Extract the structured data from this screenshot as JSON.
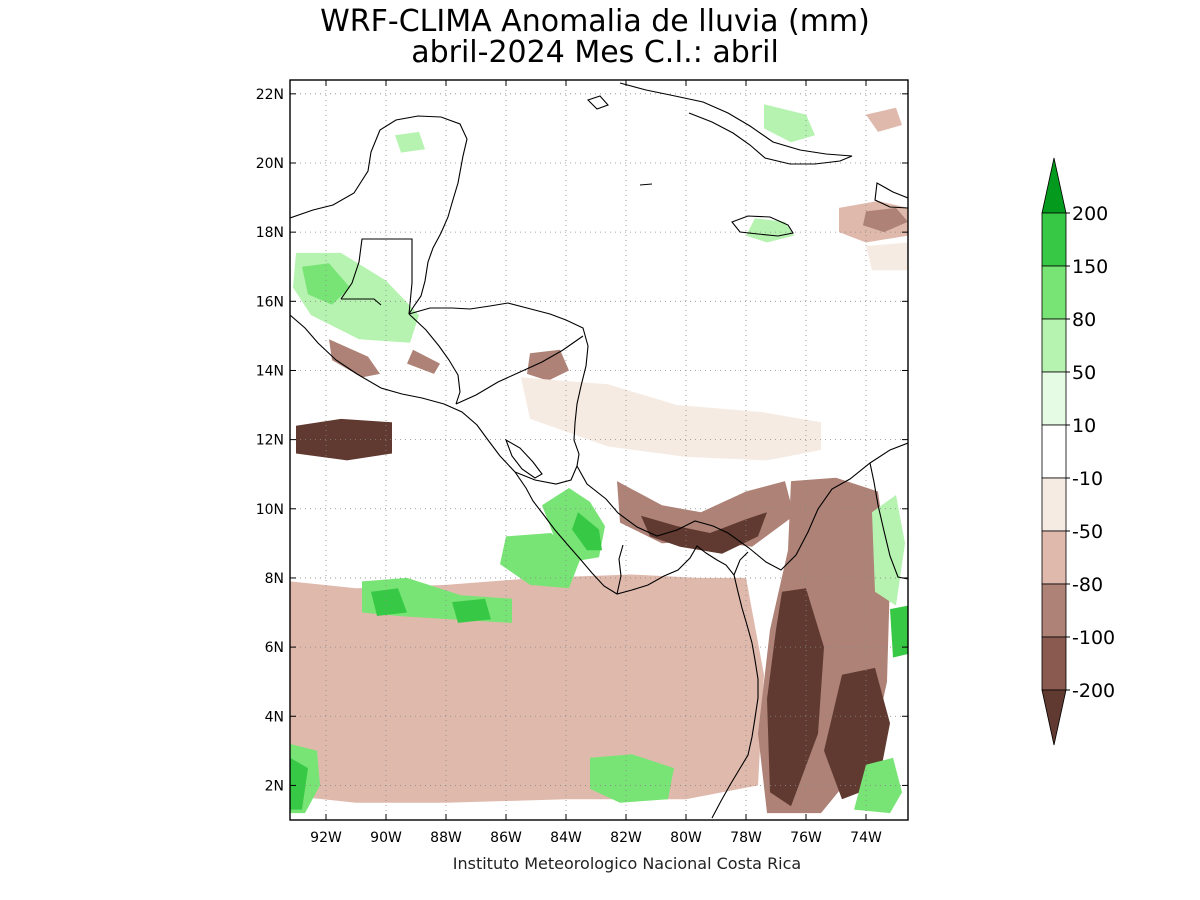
{
  "title_line1": "WRF-CLIMA Anomalia de lluvia (mm)",
  "title_line2": "abril-2024 Mes C.I.: abril",
  "credit": "Instituto Meteorologico Nacional Costa Rica",
  "map": {
    "lon_range": [
      -93.2,
      -72.6
    ],
    "lat_range": [
      1.0,
      22.4
    ],
    "lon_ticks": [
      {
        "value": -92,
        "label": "92W"
      },
      {
        "value": -90,
        "label": "90W"
      },
      {
        "value": -88,
        "label": "88W"
      },
      {
        "value": -86,
        "label": "86W"
      },
      {
        "value": -84,
        "label": "84W"
      },
      {
        "value": -82,
        "label": "82W"
      },
      {
        "value": -80,
        "label": "80W"
      },
      {
        "value": -78,
        "label": "78W"
      },
      {
        "value": -76,
        "label": "76W"
      },
      {
        "value": -74,
        "label": "74W"
      }
    ],
    "lat_ticks": [
      {
        "value": 22,
        "label": "22N"
      },
      {
        "value": 20,
        "label": "20N"
      },
      {
        "value": 18,
        "label": "18N"
      },
      {
        "value": 16,
        "label": "16N"
      },
      {
        "value": 14,
        "label": "14N"
      },
      {
        "value": 12,
        "label": "12N"
      },
      {
        "value": 10,
        "label": "10N"
      },
      {
        "value": 8,
        "label": "8N"
      },
      {
        "value": 6,
        "label": "6N"
      },
      {
        "value": 4,
        "label": "4N"
      },
      {
        "value": 2,
        "label": "2N"
      }
    ],
    "grid": true,
    "anomaly_regions": [
      {
        "level": -200,
        "points": [
          [
            -93.2,
            6.7
          ],
          [
            -91,
            6.8
          ],
          [
            -89,
            6.4
          ],
          [
            -86,
            6.7
          ],
          [
            -83.5,
            6.9
          ],
          [
            -81,
            7.1
          ],
          [
            -79,
            7.1
          ],
          [
            -78.6,
            5.5
          ],
          [
            -78.6,
            3.4
          ],
          [
            -79.5,
            2.7
          ],
          [
            -82,
            2.8
          ],
          [
            -85,
            3.1
          ],
          [
            -88,
            3.1
          ],
          [
            -91,
            3.2
          ],
          [
            -93.2,
            3.4
          ]
        ]
      },
      {
        "level": -100,
        "points": [
          [
            -93.2,
            7.6
          ],
          [
            -91.5,
            7.4
          ],
          [
            -89,
            7.0
          ],
          [
            -86,
            7.4
          ],
          [
            -83,
            7.7
          ],
          [
            -80.5,
            7.7
          ],
          [
            -78.4,
            7.6
          ],
          [
            -78.0,
            5.0
          ],
          [
            -78.2,
            2.6
          ],
          [
            -80,
            2.2
          ],
          [
            -83,
            2.4
          ],
          [
            -86,
            2.6
          ],
          [
            -89,
            2.4
          ],
          [
            -91.5,
            2.3
          ],
          [
            -93.2,
            2.6
          ]
        ]
      },
      {
        "level": -80,
        "points": [
          [
            -93.2,
            7.9
          ],
          [
            -91,
            7.7
          ],
          [
            -88,
            7.8
          ],
          [
            -85,
            8.0
          ],
          [
            -81.8,
            8.1
          ],
          [
            -79.6,
            8.0
          ],
          [
            -78.0,
            8.0
          ],
          [
            -77.4,
            5.2
          ],
          [
            -77.6,
            2.0
          ],
          [
            -80,
            1.6
          ],
          [
            -84,
            1.6
          ],
          [
            -88,
            1.5
          ],
          [
            -91,
            1.5
          ],
          [
            -93.2,
            1.7
          ]
        ]
      },
      {
        "level": -200,
        "points": [
          [
            -93.0,
            12.4
          ],
          [
            -91.5,
            12.6
          ],
          [
            -89.8,
            12.5
          ],
          [
            -89.8,
            11.6
          ],
          [
            -91.3,
            11.4
          ],
          [
            -93.0,
            11.6
          ]
        ]
      },
      {
        "level": -100,
        "points": [
          [
            -82.3,
            10.8
          ],
          [
            -80.8,
            10.1
          ],
          [
            -79.5,
            9.9
          ],
          [
            -78.0,
            10.5
          ],
          [
            -76.7,
            10.8
          ],
          [
            -76.4,
            9.8
          ],
          [
            -77.8,
            8.9
          ],
          [
            -79.5,
            9.1
          ],
          [
            -80.8,
            9.0
          ],
          [
            -82.2,
            9.6
          ]
        ]
      },
      {
        "level": -200,
        "points": [
          [
            -81.5,
            9.8
          ],
          [
            -80.3,
            9.5
          ],
          [
            -79.2,
            9.3
          ],
          [
            -78.0,
            9.7
          ],
          [
            -77.3,
            9.9
          ],
          [
            -77.6,
            9.2
          ],
          [
            -78.8,
            8.7
          ],
          [
            -80.2,
            8.9
          ],
          [
            -81.2,
            9.2
          ]
        ]
      },
      {
        "level": -100,
        "points": [
          [
            -76.5,
            10.8
          ],
          [
            -75.0,
            10.9
          ],
          [
            -73.6,
            10.5
          ],
          [
            -73.2,
            8.0
          ],
          [
            -73.3,
            5.0
          ],
          [
            -73.8,
            3.0
          ],
          [
            -75.5,
            1.2
          ],
          [
            -77.3,
            1.2
          ],
          [
            -77.6,
            3.5
          ],
          [
            -77.2,
            6.5
          ],
          [
            -76.6,
            8.8
          ]
        ]
      },
      {
        "level": -200,
        "points": [
          [
            -76.8,
            7.6
          ],
          [
            -76.0,
            7.7
          ],
          [
            -75.4,
            6.0
          ],
          [
            -75.6,
            3.5
          ],
          [
            -76.5,
            1.4
          ],
          [
            -77.2,
            1.8
          ],
          [
            -77.3,
            4.5
          ],
          [
            -77.0,
            6.5
          ]
        ]
      },
      {
        "level": -200,
        "points": [
          [
            -74.8,
            5.2
          ],
          [
            -73.7,
            5.4
          ],
          [
            -73.2,
            3.8
          ],
          [
            -73.6,
            2.0
          ],
          [
            -74.8,
            1.6
          ],
          [
            -75.4,
            3.0
          ]
        ]
      },
      {
        "level": -100,
        "points": [
          [
            -85.2,
            14.5
          ],
          [
            -84.2,
            14.6
          ],
          [
            -83.9,
            14.0
          ],
          [
            -84.6,
            13.7
          ],
          [
            -85.3,
            13.9
          ]
        ]
      },
      {
        "level": -100,
        "points": [
          [
            -91.9,
            14.9
          ],
          [
            -90.6,
            14.4
          ],
          [
            -90.2,
            13.9
          ],
          [
            -90.8,
            13.8
          ],
          [
            -91.8,
            14.3
          ]
        ]
      },
      {
        "level": -100,
        "points": [
          [
            -89.1,
            14.6
          ],
          [
            -88.2,
            14.2
          ],
          [
            -88.4,
            13.9
          ],
          [
            -89.3,
            14.2
          ]
        ]
      },
      {
        "level": -50,
        "points": [
          [
            -85.5,
            13.8
          ],
          [
            -82.6,
            13.6
          ],
          [
            -80.3,
            13.0
          ],
          [
            -77.5,
            12.8
          ],
          [
            -75.5,
            12.5
          ],
          [
            -75.5,
            11.7
          ],
          [
            -77.3,
            11.4
          ],
          [
            -80.0,
            11.5
          ],
          [
            -82.6,
            11.8
          ],
          [
            -85.2,
            12.6
          ]
        ]
      },
      {
        "level": 80,
        "points": [
          [
            -83.9,
            10.6
          ],
          [
            -83.2,
            10.2
          ],
          [
            -82.7,
            9.5
          ],
          [
            -82.9,
            8.6
          ],
          [
            -83.6,
            8.5
          ],
          [
            -84.4,
            9.2
          ],
          [
            -84.8,
            10.1
          ]
        ]
      },
      {
        "level": 150,
        "points": [
          [
            -83.6,
            9.9
          ],
          [
            -82.9,
            9.4
          ],
          [
            -82.8,
            8.8
          ],
          [
            -83.3,
            8.8
          ],
          [
            -83.8,
            9.4
          ]
        ]
      },
      {
        "level": 80,
        "points": [
          [
            -86.0,
            9.2
          ],
          [
            -84.5,
            9.3
          ],
          [
            -83.5,
            8.6
          ],
          [
            -83.9,
            7.7
          ],
          [
            -85.2,
            7.8
          ],
          [
            -86.2,
            8.4
          ]
        ]
      },
      {
        "level": 80,
        "points": [
          [
            -90.8,
            7.9
          ],
          [
            -89.3,
            8.0
          ],
          [
            -87.5,
            7.5
          ],
          [
            -85.8,
            7.4
          ],
          [
            -85.8,
            6.7
          ],
          [
            -87.8,
            6.8
          ],
          [
            -89.6,
            6.9
          ],
          [
            -90.8,
            7.0
          ]
        ]
      },
      {
        "level": 150,
        "points": [
          [
            -90.5,
            7.6
          ],
          [
            -89.6,
            7.7
          ],
          [
            -89.3,
            7.0
          ],
          [
            -90.3,
            6.9
          ]
        ]
      },
      {
        "level": 150,
        "points": [
          [
            -87.8,
            7.3
          ],
          [
            -86.7,
            7.4
          ],
          [
            -86.5,
            6.8
          ],
          [
            -87.6,
            6.7
          ]
        ]
      },
      {
        "level": 80,
        "points": [
          [
            -93.2,
            3.2
          ],
          [
            -92.3,
            3.0
          ],
          [
            -92.2,
            2.0
          ],
          [
            -92.7,
            1.2
          ],
          [
            -93.2,
            1.2
          ]
        ]
      },
      {
        "level": 150,
        "points": [
          [
            -93.2,
            2.8
          ],
          [
            -92.6,
            2.5
          ],
          [
            -92.8,
            1.3
          ],
          [
            -93.2,
            1.3
          ]
        ]
      },
      {
        "level": 80,
        "points": [
          [
            -83.2,
            2.8
          ],
          [
            -81.8,
            2.9
          ],
          [
            -80.4,
            2.5
          ],
          [
            -80.6,
            1.6
          ],
          [
            -82.2,
            1.5
          ],
          [
            -83.2,
            1.9
          ]
        ]
      },
      {
        "level": 80,
        "points": [
          [
            -74.0,
            2.6
          ],
          [
            -73.1,
            2.8
          ],
          [
            -72.8,
            1.8
          ],
          [
            -73.2,
            1.2
          ],
          [
            -74.4,
            1.3
          ]
        ]
      },
      {
        "level": 150,
        "points": [
          [
            -73.2,
            7.1
          ],
          [
            -72.6,
            7.2
          ],
          [
            -72.6,
            5.8
          ],
          [
            -73.1,
            5.7
          ]
        ]
      },
      {
        "level": 50,
        "points": [
          [
            -73.8,
            9.9
          ],
          [
            -73.0,
            10.4
          ],
          [
            -72.7,
            9.0
          ],
          [
            -73.0,
            7.2
          ],
          [
            -73.7,
            7.6
          ]
        ]
      },
      {
        "level": 50,
        "points": [
          [
            -93.0,
            17.4
          ],
          [
            -91.5,
            17.4
          ],
          [
            -90.0,
            16.6
          ],
          [
            -88.9,
            15.6
          ],
          [
            -89.2,
            14.8
          ],
          [
            -90.9,
            14.9
          ],
          [
            -92.5,
            15.6
          ],
          [
            -93.1,
            16.4
          ]
        ]
      },
      {
        "level": 80,
        "points": [
          [
            -92.8,
            17.0
          ],
          [
            -91.9,
            17.1
          ],
          [
            -91.2,
            16.4
          ],
          [
            -91.8,
            15.9
          ],
          [
            -92.6,
            16.2
          ]
        ]
      },
      {
        "level": 50,
        "points": [
          [
            -77.7,
            18.4
          ],
          [
            -76.7,
            18.3
          ],
          [
            -76.4,
            17.9
          ],
          [
            -77.3,
            17.7
          ],
          [
            -78.0,
            17.9
          ]
        ]
      },
      {
        "level": 50,
        "points": [
          [
            -77.4,
            21.7
          ],
          [
            -76.0,
            21.4
          ],
          [
            -75.7,
            20.8
          ],
          [
            -76.5,
            20.6
          ],
          [
            -77.4,
            21.0
          ]
        ]
      },
      {
        "level": 50,
        "points": [
          [
            -89.7,
            20.8
          ],
          [
            -88.9,
            20.9
          ],
          [
            -88.7,
            20.4
          ],
          [
            -89.5,
            20.3
          ]
        ]
      },
      {
        "level": -80,
        "points": [
          [
            -74.9,
            18.7
          ],
          [
            -73.6,
            18.9
          ],
          [
            -72.6,
            18.7
          ],
          [
            -72.6,
            17.9
          ],
          [
            -74.0,
            17.7
          ],
          [
            -74.9,
            18.0
          ]
        ]
      },
      {
        "level": -100,
        "points": [
          [
            -74.0,
            18.6
          ],
          [
            -73.0,
            18.7
          ],
          [
            -72.6,
            18.3
          ],
          [
            -73.4,
            18.0
          ],
          [
            -74.1,
            18.2
          ]
        ]
      },
      {
        "level": -80,
        "points": [
          [
            -74.0,
            21.4
          ],
          [
            -73.0,
            21.6
          ],
          [
            -72.8,
            21.1
          ],
          [
            -73.6,
            20.9
          ]
        ]
      },
      {
        "level": -50,
        "points": [
          [
            -74.0,
            17.6
          ],
          [
            -72.6,
            17.7
          ],
          [
            -72.6,
            16.9
          ],
          [
            -73.8,
            16.9
          ]
        ]
      }
    ]
  },
  "colorbar": {
    "bins": [
      {
        "color": "#049a1d",
        "label": "200"
      },
      {
        "color": "#37c945",
        "label": "150"
      },
      {
        "color": "#78e475",
        "label": "80"
      },
      {
        "color": "#b6f3b0",
        "label": "50"
      },
      {
        "color": "#e6fbe4",
        "label": "10"
      },
      {
        "color": "#ffffff",
        "label": "-10"
      },
      {
        "color": "#f6ebe3",
        "label": "-50"
      },
      {
        "color": "#e0b9ad",
        "label": "-80"
      },
      {
        "color": "#ae8276",
        "label": "-100"
      },
      {
        "color": "#8a5a50",
        "label": "-200"
      },
      {
        "color": "#603a30",
        "label": ""
      }
    ]
  }
}
